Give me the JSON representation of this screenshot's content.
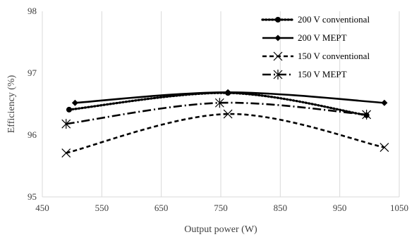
{
  "chart_data": {
    "type": "line",
    "title": "",
    "xlabel": "Output power (W)",
    "ylabel": "Efficiency (%)",
    "xlim": [
      450,
      1050
    ],
    "ylim": [
      95,
      98
    ],
    "xticks": [
      450,
      550,
      650,
      750,
      850,
      950,
      1050
    ],
    "yticks": [
      95,
      96,
      97,
      98
    ],
    "grid": "vertical gridlines",
    "legend_position": "top-right",
    "series": [
      {
        "name": "200 V conventional",
        "style": "dotted",
        "marker": "circle",
        "color": "#000000",
        "x": [
          495,
          762,
          995
        ],
        "y": [
          96.41,
          96.68,
          96.32
        ]
      },
      {
        "name": "200 V MEPT",
        "style": "solid",
        "marker": "diamond",
        "color": "#000000",
        "x": [
          505,
          762,
          1025
        ],
        "y": [
          96.52,
          96.69,
          96.52
        ]
      },
      {
        "name": "150 V conventional",
        "style": "dashed",
        "marker": "x",
        "color": "#000000",
        "x": [
          490,
          762,
          1025
        ],
        "y": [
          95.71,
          96.34,
          95.8
        ]
      },
      {
        "name": "150 V MEPT",
        "style": "dashdot",
        "marker": "asterisk",
        "color": "#000000",
        "x": [
          490,
          748,
          995
        ],
        "y": [
          96.18,
          96.52,
          96.33
        ]
      }
    ]
  }
}
